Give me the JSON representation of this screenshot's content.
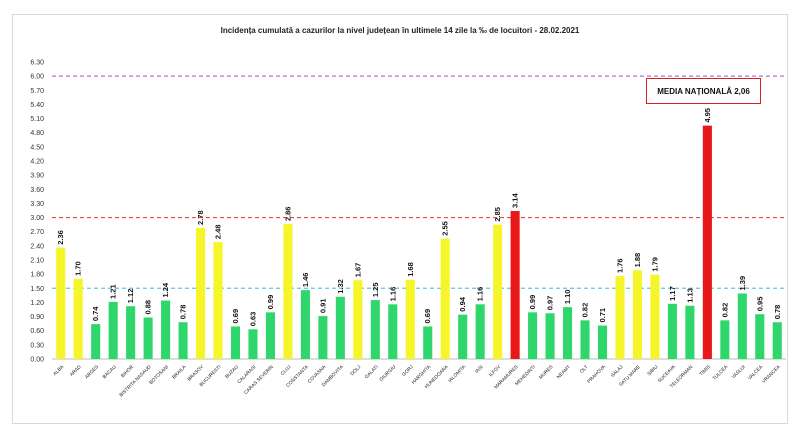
{
  "chart_data": {
    "type": "bar",
    "title": "Incidența cumulată a cazurilor la nivel județean în ultimele 14 zile la ‰ de locuitori - 28.02.2021",
    "xlabel": "",
    "ylabel": "",
    "ylim": [
      0,
      6.3
    ],
    "yticks": [
      "0.00",
      "0.30",
      "0.60",
      "0.90",
      "1.20",
      "1.50",
      "1.80",
      "2.10",
      "2.40",
      "2.70",
      "3.00",
      "3.30",
      "3.60",
      "3.90",
      "4.20",
      "4.50",
      "4.80",
      "5.10",
      "5.40",
      "5.70",
      "6.00",
      "6.30"
    ],
    "categories": [
      "ALBA",
      "ARAD",
      "ARGES",
      "BACAU",
      "BIHOR",
      "BISTRITA NASAUD",
      "BOTOSANI",
      "BRAILA",
      "BRASOV",
      "BUCURESTI",
      "BUZAU",
      "CALARASI",
      "CARAS SEVERIN",
      "CLUJ",
      "CONSTANTA",
      "COVASNA",
      "DAMBOVITA",
      "DOLJ",
      "GALATI",
      "GIURGIU",
      "GORJ",
      "HARGHITA",
      "HUNEDOARA",
      "IALOMITA",
      "IASI",
      "ILFOV",
      "MARAMURES",
      "MEHEDINTI",
      "MURES",
      "NEAMT",
      "OLT",
      "PRAHOVA",
      "SALAJ",
      "SATU MARE",
      "SIBIU",
      "SUCEAVA",
      "TELEORMAN",
      "TIMIS",
      "TULCEA",
      "VASLUI",
      "VALCEA",
      "VRANCEA"
    ],
    "values": [
      2.36,
      1.7,
      0.74,
      1.21,
      1.12,
      0.88,
      1.24,
      0.78,
      2.78,
      2.48,
      0.69,
      0.63,
      0.99,
      2.86,
      1.46,
      0.91,
      1.32,
      1.67,
      1.25,
      1.16,
      1.68,
      0.69,
      2.55,
      0.94,
      1.16,
      2.85,
      3.14,
      0.99,
      0.97,
      1.1,
      0.82,
      0.71,
      1.76,
      1.88,
      1.79,
      1.17,
      1.13,
      4.95,
      0.82,
      1.39,
      0.95,
      0.78
    ],
    "value_labels": [
      "2.36",
      "1.70",
      "0.74",
      "1.21",
      "1.12",
      "0.88",
      "1.24",
      "0.78",
      "2.78",
      "2.48",
      "0.69",
      "0.63",
      "0.99",
      "2.86",
      "1.46",
      "0.91",
      "1.32",
      "1.67",
      "1.25",
      "1.16",
      "1.68",
      "0.69",
      "2.55",
      "0.94",
      "1.16",
      "2.85",
      "3.14",
      "0.99",
      "0.97",
      "1.10",
      "0.82",
      "0.71",
      "1.76",
      "1.88",
      "1.79",
      "1.17",
      "1.13",
      "4.95",
      "0.82",
      "1.39",
      "0.95",
      "0.78"
    ],
    "thresholds": [
      {
        "value": 1.5,
        "color": "#5bc8e8",
        "style": "dashed"
      },
      {
        "value": 3.0,
        "color": "#e84a4a",
        "style": "dashed"
      },
      {
        "value": 6.0,
        "color": "#b070d0",
        "style": "dashed"
      }
    ],
    "colors": {
      "low": "#2fd66b",
      "mid": "#f5f52a",
      "high": "#e81818"
    },
    "annotation": "MEDIA NAȚIONALĂ 2,06"
  }
}
